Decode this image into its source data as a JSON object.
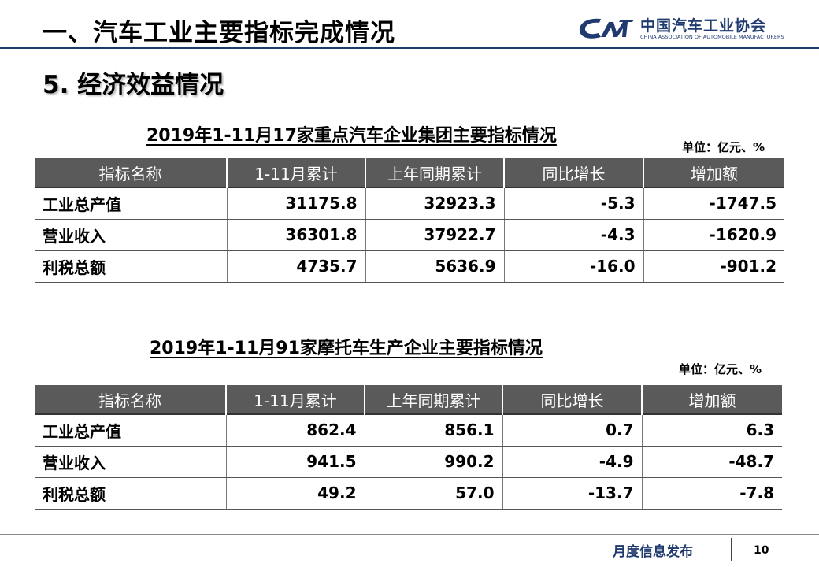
{
  "header": {
    "title": "一、汽车工业主要指标完成情况",
    "logo": {
      "name_cn": "中国汽车工业协会",
      "name_en": "CHINA ASSOCIATION OF AUTOMOBILE MANUFACTURERS"
    }
  },
  "section": {
    "title": "5. 经济效益情况"
  },
  "colors": {
    "header_line": "#1f3a6e",
    "table_header_bg": "#5a5a5a",
    "brand": "#1f3a6e"
  },
  "tables": [
    {
      "title": "2019年1-11月17家重点汽车企业集团主要指标情况",
      "unit": "单位：亿元、%",
      "columns": [
        "指标名称",
        "1-11月累计",
        "上年同期累计",
        "同比增长",
        "增加额"
      ],
      "rows": [
        [
          "工业总产值",
          "31175.8",
          "32923.3",
          "-5.3",
          "-1747.5"
        ],
        [
          "营业收入",
          "36301.8",
          "37922.7",
          "-4.3",
          "-1620.9"
        ],
        [
          "利税总额",
          "4735.7",
          "5636.9",
          "-16.0",
          "-901.2"
        ]
      ]
    },
    {
      "title": "2019年1-11月91家摩托车生产企业主要指标情况",
      "unit": "单位：亿元、%",
      "columns": [
        "指标名称",
        "1-11月累计",
        "上年同期累计",
        "同比增长",
        "增加额"
      ],
      "rows": [
        [
          "工业总产值",
          "862.4",
          "856.1",
          "0.7",
          "6.3"
        ],
        [
          "营业收入",
          "941.5",
          "990.2",
          "-4.9",
          "-48.7"
        ],
        [
          "利税总额",
          "49.2",
          "57.0",
          "-13.7",
          "-7.8"
        ]
      ]
    }
  ],
  "footer": {
    "label": "月度信息发布",
    "page": "10"
  }
}
